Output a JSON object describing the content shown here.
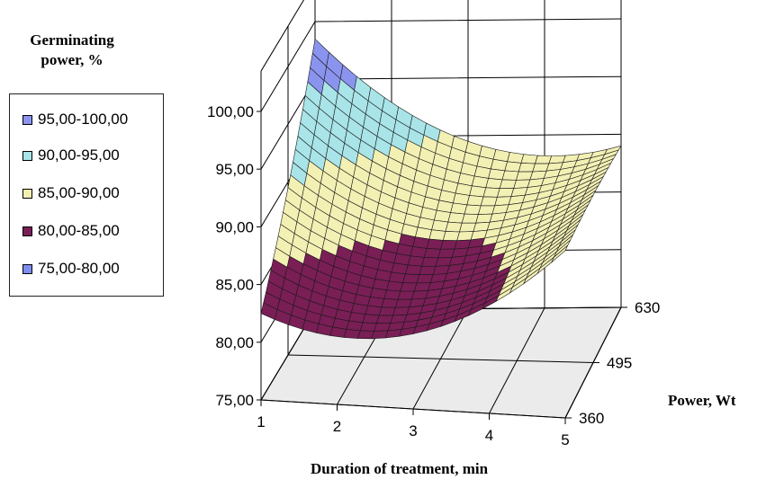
{
  "chart_data": {
    "type": "surface",
    "legend_title": "Germinating power, %",
    "xlabel": "Duration of treatment, min",
    "zlabel": "Power, Wt",
    "x_ticks": [
      "1",
      "2",
      "3",
      "4",
      "5"
    ],
    "z_ticks": [
      "360",
      "495",
      "630"
    ],
    "y_ticks": [
      "75,00",
      "80,00",
      "85,00",
      "90,00",
      "95,00",
      "100,00"
    ],
    "ylim": [
      75,
      100
    ],
    "legend": [
      {
        "label": "95,00-100,00",
        "color": "#8a94ee"
      },
      {
        "label": "90,00-95,00",
        "color": "#a8e4e8"
      },
      {
        "label": "85,00-90,00",
        "color": "#f3f0b4"
      },
      {
        "label": "80,00-85,00",
        "color": "#7a1e56"
      },
      {
        "label": "75,00-80,00",
        "color": "#7f8cf0"
      }
    ],
    "surface_points": [
      {
        "x": 1,
        "power": 630,
        "y": 98.5
      },
      {
        "x": 1,
        "power": 495,
        "y": 89.5
      },
      {
        "x": 1,
        "power": 360,
        "y": 82.5
      },
      {
        "x": 3,
        "power": 630,
        "y": 89.5
      },
      {
        "x": 3,
        "power": 495,
        "y": 84.5
      },
      {
        "x": 3,
        "power": 360,
        "y": 81.5
      },
      {
        "x": 5,
        "power": 630,
        "y": 89.0
      },
      {
        "x": 5,
        "power": 495,
        "y": 89.5
      },
      {
        "x": 5,
        "power": 360,
        "y": 89.5
      }
    ]
  }
}
